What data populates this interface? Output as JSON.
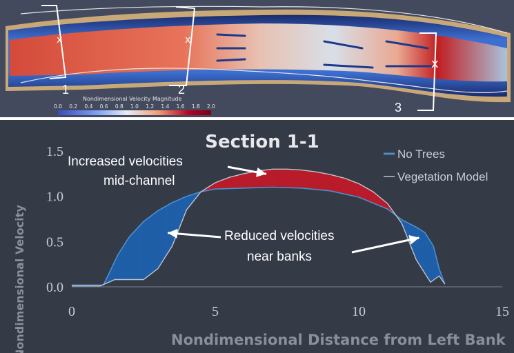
{
  "map": {
    "colorbar_title": "Nondimensional Velocity Magnitude",
    "colorbar_ticks": [
      "0.0",
      "0.2",
      "0.4",
      "0.6",
      "0.8",
      "1.0",
      "1.2",
      "1.4",
      "1.6",
      "1.8",
      "2.0"
    ],
    "colorbar_colors": [
      "#3b4cc0",
      "#7a9ff0",
      "#e7ecf4",
      "#f2a07a",
      "#b40426",
      "#7a0019"
    ],
    "section_labels": [
      "1",
      "2",
      "3"
    ]
  },
  "chart_data": {
    "type": "area",
    "title": "Section 1-1",
    "xlabel": "Nondimensional Distance from Left Bank",
    "ylabel": "Nondimensional Velocity",
    "xlim": [
      0,
      15
    ],
    "ylim": [
      0,
      1.5
    ],
    "xticks": [
      "0",
      "5",
      "10",
      "15"
    ],
    "yticks": [
      "0.0",
      "0.5",
      "1.0",
      "1.5"
    ],
    "grid": false,
    "legend_position": "top-right",
    "series": [
      {
        "name": "No Trees",
        "color": "#4a8fd0",
        "x": [
          0,
          1.1,
          1.3,
          1.6,
          2.0,
          2.5,
          3.0,
          3.5,
          4.0,
          4.5,
          5.0,
          6.0,
          7.0,
          8.0,
          9.0,
          10.0,
          11.0,
          11.5,
          12.0,
          12.3,
          12.6,
          12.8,
          13.0
        ],
        "y": [
          0.02,
          0.02,
          0.15,
          0.35,
          0.55,
          0.72,
          0.84,
          0.93,
          1.0,
          1.05,
          1.08,
          1.09,
          1.1,
          1.09,
          1.06,
          0.99,
          0.86,
          0.74,
          0.66,
          0.6,
          0.45,
          0.2,
          0.03
        ]
      },
      {
        "name": "Vegetation Model",
        "color": "#c0c4cc",
        "x": [
          0,
          1.0,
          1.5,
          2.0,
          2.5,
          3.0,
          3.5,
          4.0,
          4.5,
          5.0,
          5.5,
          6.0,
          6.5,
          7.0,
          7.5,
          8.0,
          8.5,
          9.0,
          9.5,
          10.0,
          10.5,
          11.0,
          11.5,
          12.0,
          12.5,
          12.8,
          13.0
        ],
        "y": [
          0.01,
          0.01,
          0.08,
          0.08,
          0.08,
          0.2,
          0.45,
          0.85,
          1.05,
          1.15,
          1.21,
          1.25,
          1.28,
          1.3,
          1.3,
          1.29,
          1.27,
          1.24,
          1.2,
          1.14,
          1.05,
          0.92,
          0.7,
          0.3,
          0.05,
          0.12,
          0.03
        ]
      }
    ],
    "fills": [
      {
        "between": "No Trees above Vegetation Model",
        "color": "#1f5fa8"
      },
      {
        "between": "Vegetation Model above No Trees",
        "color": "#b81c2a"
      }
    ],
    "annotations": [
      {
        "lines": [
          "Increased velocities",
          "mid-channel"
        ],
        "target_x": 7.5,
        "target_y": 1.2
      },
      {
        "lines": [
          "Reduced velocities",
          "near banks"
        ],
        "target_x": 3.2,
        "target_y": 0.55,
        "target2_x": 12.2,
        "target2_y": 0.45
      }
    ]
  }
}
